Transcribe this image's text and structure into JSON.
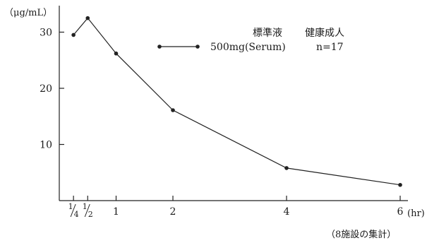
{
  "chart_data": {
    "type": "line",
    "y_unit_label": "（μg/mL）",
    "x_unit_label": "(hr)",
    "x": [
      0.25,
      0.5,
      1,
      2,
      4,
      6
    ],
    "x_tick_labels": [
      {
        "num": "1",
        "den": "4"
      },
      {
        "num": "1",
        "den": "2"
      },
      "1",
      "2",
      "4",
      "6"
    ],
    "y_ticks": [
      10,
      20,
      30
    ],
    "xlim": [
      0,
      6.3
    ],
    "ylim": [
      0,
      35
    ],
    "grid": false,
    "series": [
      {
        "name": "500mg(Serum)",
        "values": [
          29.5,
          32.5,
          26.2,
          16.1,
          5.8,
          2.8
        ]
      }
    ],
    "legend": {
      "header_left": "標準液",
      "header_right": "健康成人",
      "series_label": "500mg(Serum)",
      "n_label": "n=17"
    },
    "footnote": "（8施設の集計）"
  }
}
